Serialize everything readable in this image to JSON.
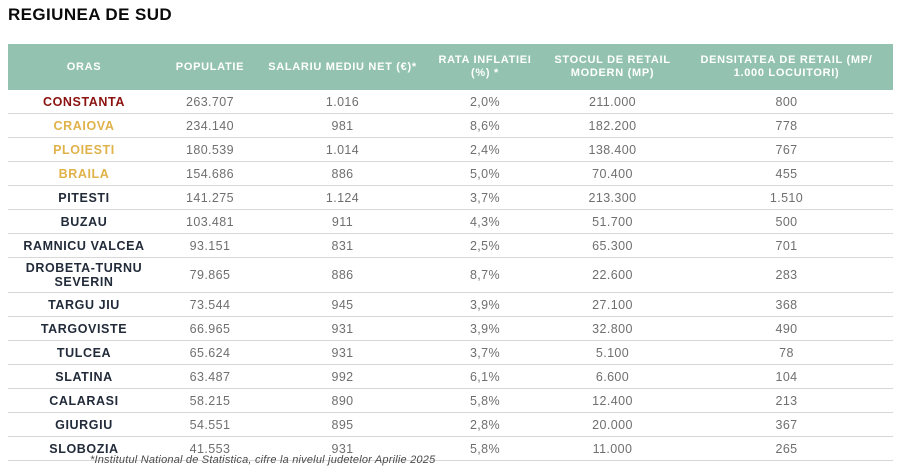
{
  "title": "REGIUNEA DE SUD",
  "footnote": "*Institutul National de Statistica, cifre la nivelul judetelor Aprilie 2025",
  "colors": {
    "header_bg": "#93c3b0",
    "header_text": "#ffffff",
    "city_default": "#222b3a",
    "city_red": "#8b1210",
    "city_gold": "#e0b24a",
    "value_text": "#6f6f6f"
  },
  "chart_data": {
    "type": "table",
    "title": "REGIUNEA DE SUD",
    "columns": [
      "ORAS",
      "POPULATIE",
      "SALARIU MEDIU NET (€)*",
      "RATA INFLATIEI (%) *",
      "STOCUL DE RETAIL MODERN (MP)",
      "DENSITATEA DE RETAIL (MP/ 1.000 LOCUITORI)"
    ],
    "rows": [
      {
        "oras": "CONSTANTA",
        "color": "red",
        "populatie": "263.707",
        "salariu_mediu_net": "1.016",
        "rata_inflatiei": "2,0%",
        "stoc_retail": "211.000",
        "densitate": "800"
      },
      {
        "oras": "CRAIOVA",
        "color": "gold",
        "populatie": "234.140",
        "salariu_mediu_net": "981",
        "rata_inflatiei": "8,6%",
        "stoc_retail": "182.200",
        "densitate": "778"
      },
      {
        "oras": "PLOIESTI",
        "color": "gold",
        "populatie": "180.539",
        "salariu_mediu_net": "1.014",
        "rata_inflatiei": "2,4%",
        "stoc_retail": "138.400",
        "densitate": "767"
      },
      {
        "oras": "BRAILA",
        "color": "gold",
        "populatie": "154.686",
        "salariu_mediu_net": "886",
        "rata_inflatiei": "5,0%",
        "stoc_retail": "70.400",
        "densitate": "455"
      },
      {
        "oras": "PITESTI",
        "color": "default",
        "populatie": "141.275",
        "salariu_mediu_net": "1.124",
        "rata_inflatiei": "3,7%",
        "stoc_retail": "213.300",
        "densitate": "1.510"
      },
      {
        "oras": "BUZAU",
        "color": "default",
        "populatie": "103.481",
        "salariu_mediu_net": "911",
        "rata_inflatiei": "4,3%",
        "stoc_retail": "51.700",
        "densitate": "500"
      },
      {
        "oras": "RAMNICU VALCEA",
        "color": "default",
        "populatie": "93.151",
        "salariu_mediu_net": "831",
        "rata_inflatiei": "2,5%",
        "stoc_retail": "65.300",
        "densitate": "701"
      },
      {
        "oras": "DROBETA-TURNU SEVERIN",
        "color": "default",
        "populatie": "79.865",
        "salariu_mediu_net": "886",
        "rata_inflatiei": "8,7%",
        "stoc_retail": "22.600",
        "densitate": "283"
      },
      {
        "oras": "TARGU JIU",
        "color": "default",
        "populatie": "73.544",
        "salariu_mediu_net": "945",
        "rata_inflatiei": "3,9%",
        "stoc_retail": "27.100",
        "densitate": "368"
      },
      {
        "oras": "TARGOVISTE",
        "color": "default",
        "populatie": "66.965",
        "salariu_mediu_net": "931",
        "rata_inflatiei": "3,9%",
        "stoc_retail": "32.800",
        "densitate": "490"
      },
      {
        "oras": "TULCEA",
        "color": "default",
        "populatie": "65.624",
        "salariu_mediu_net": "931",
        "rata_inflatiei": "3,7%",
        "stoc_retail": "5.100",
        "densitate": "78"
      },
      {
        "oras": "SLATINA",
        "color": "default",
        "populatie": "63.487",
        "salariu_mediu_net": "992",
        "rata_inflatiei": "6,1%",
        "stoc_retail": "6.600",
        "densitate": "104"
      },
      {
        "oras": "CALARASI",
        "color": "default",
        "populatie": "58.215",
        "salariu_mediu_net": "890",
        "rata_inflatiei": "5,8%",
        "stoc_retail": "12.400",
        "densitate": "213"
      },
      {
        "oras": "GIURGIU",
        "color": "default",
        "populatie": "54.551",
        "salariu_mediu_net": "895",
        "rata_inflatiei": "2,8%",
        "stoc_retail": "20.000",
        "densitate": "367"
      },
      {
        "oras": "SLOBOZIA",
        "color": "default",
        "populatie": "41.553",
        "salariu_mediu_net": "931",
        "rata_inflatiei": "5,8%",
        "stoc_retail": "11.000",
        "densitate": "265"
      }
    ]
  }
}
